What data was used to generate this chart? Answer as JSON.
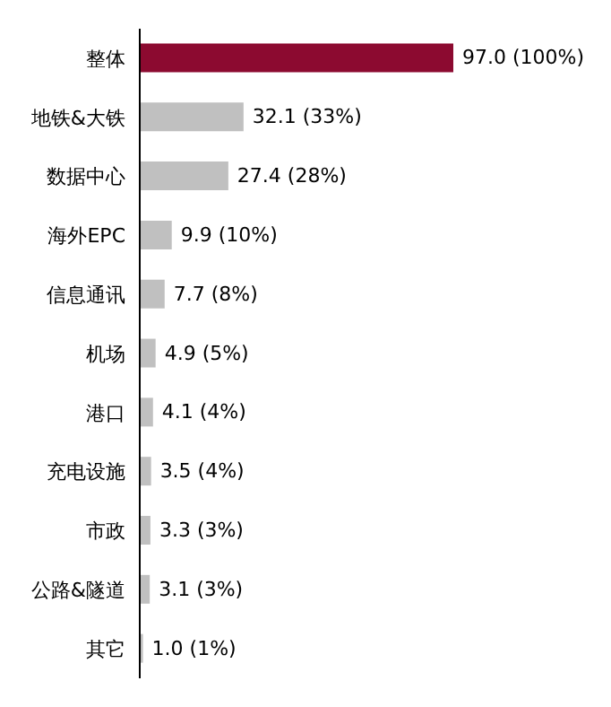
{
  "chart_data": {
    "type": "bar",
    "orientation": "horizontal",
    "categories": [
      "整体",
      "地铁&大铁",
      "数据中心",
      "海外EPC",
      "信息通讯",
      "机场",
      "港口",
      "充电设施",
      "市政",
      "公路&隧道",
      "其它"
    ],
    "values": [
      97.0,
      32.1,
      27.4,
      9.9,
      7.7,
      4.9,
      4.1,
      3.5,
      3.3,
      3.1,
      1.0
    ],
    "colors": [
      "#8c0a30",
      "#c0c0c0",
      "#c0c0c0",
      "#c0c0c0",
      "#c0c0c0",
      "#c0c0c0",
      "#c0c0c0",
      "#c0c0c0",
      "#c0c0c0",
      "#c0c0c0",
      "#c0c0c0"
    ],
    "value_labels": [
      "97.0 (100%)",
      "32.1 (33%)",
      "27.4 (28%)",
      "9.9 (10%)",
      "7.7 (8%)",
      "4.9 (5%)",
      "4.1 (4%)",
      "3.5 (4%)",
      "3.3 (3%)",
      "3.1 (3%)",
      "1.0 (1%)"
    ],
    "grid": false
  }
}
